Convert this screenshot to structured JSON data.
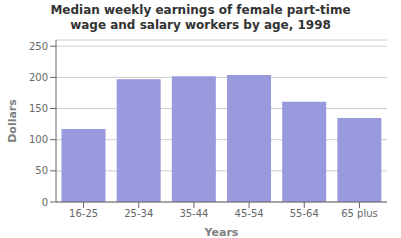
{
  "chart_data": {
    "type": "bar",
    "title": "Median weekly earnings of female part-time\nwage and salary workers by age, 1998",
    "x_label": "Years",
    "y_label": "Dollars",
    "categories": [
      "16-25",
      "25-34",
      "35-44",
      "45-54",
      "55-64",
      "65 plus"
    ],
    "values": [
      117,
      197,
      202,
      204,
      161,
      135
    ],
    "color": "#9999DD",
    "ylim": [
      0,
      260
    ],
    "yticks": [
      0,
      50,
      100,
      150,
      200,
      250
    ],
    "grid": true
  }
}
